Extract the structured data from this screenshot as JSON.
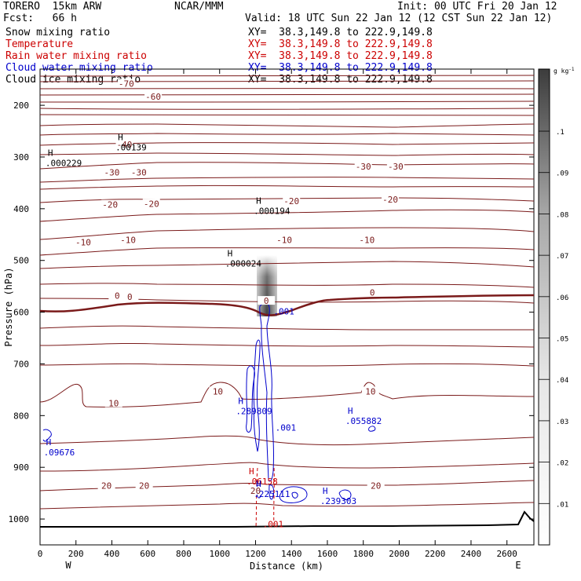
{
  "header": {
    "model": "TORERO  15km ARW",
    "center": "NCAR/MMM",
    "init": "Init: 00 UTC Fri 20 Jan 12",
    "fcst": "Fcst:   66 h",
    "valid": "Valid: 18 UTC Sun 22 Jan 12 (12 CST Sun 22 Jan 12)"
  },
  "fields": [
    {
      "name": "Snow mixing ratio",
      "xy": "XY=  38.3,149.8 to 222.9,149.8",
      "color": "#000000"
    },
    {
      "name": "Temperature",
      "xy": "XY=  38.3,149.8 to 222.9,149.8",
      "color": "#cc0000"
    },
    {
      "name": "Rain water mixing ratio",
      "xy": "XY=  38.3,149.8 to 222.9,149.8",
      "color": "#cc0000"
    },
    {
      "name": "Cloud water mixing ratio",
      "xy": "XY=  38.3,149.8 to 222.9,149.8",
      "color": "#0000cc"
    },
    {
      "name": "Cloud ice mixing ratio",
      "xy": "XY=  38.3,149.8 to 222.9,149.8",
      "color": "#000000"
    }
  ],
  "colors": {
    "temperature": "#7a1a1a",
    "cloud_water": "#0000cc",
    "rain": "#cc0000",
    "snow_shade": "#555555",
    "ground": "#000000"
  },
  "chart_data": {
    "type": "contour",
    "xlabel": "Distance (km)",
    "ylabel": "Pressure (hPa)",
    "xlim": [
      0,
      2750
    ],
    "ylim": [
      1050,
      130
    ],
    "x_ticks": [
      0,
      200,
      400,
      600,
      800,
      1000,
      1200,
      1400,
      1600,
      1800,
      2000,
      2200,
      2400,
      2600
    ],
    "y_ticks": [
      200,
      300,
      400,
      500,
      600,
      700,
      800,
      900,
      1000
    ],
    "x_end_labels": {
      "left": "W",
      "right": "E"
    },
    "colorbar": {
      "unit_label": "g kg",
      "unit_exp": "-1",
      "ticks": [
        ".01",
        ".02",
        ".03",
        ".04",
        ".05",
        ".06",
        ".07",
        ".08",
        ".09",
        ".1"
      ],
      "max_value": 0.115
    },
    "temperature_contour_labels": [
      {
        "x": 480,
        "p": 158,
        "label": "-70"
      },
      {
        "x": 630,
        "p": 183,
        "label": "-60"
      },
      {
        "x": 470,
        "p": 276,
        "label": "-40"
      },
      {
        "x": 400,
        "p": 330,
        "label": "-30"
      },
      {
        "x": 550,
        "p": 330,
        "label": "-30"
      },
      {
        "x": 1800,
        "p": 318,
        "label": "-30"
      },
      {
        "x": 1980,
        "p": 318,
        "label": "-30"
      },
      {
        "x": 390,
        "p": 392,
        "label": "-20"
      },
      {
        "x": 620,
        "p": 390,
        "label": "-20"
      },
      {
        "x": 1400,
        "p": 385,
        "label": "-20"
      },
      {
        "x": 1950,
        "p": 382,
        "label": "-20"
      },
      {
        "x": 240,
        "p": 465,
        "label": "-10"
      },
      {
        "x": 490,
        "p": 460,
        "label": "-10"
      },
      {
        "x": 1360,
        "p": 460,
        "label": "-10"
      },
      {
        "x": 1820,
        "p": 460,
        "label": "-10"
      },
      {
        "x": 430,
        "p": 568,
        "label": "0"
      },
      {
        "x": 500,
        "p": 570,
        "label": "0"
      },
      {
        "x": 1260,
        "p": 578,
        "label": "0"
      },
      {
        "x": 1850,
        "p": 562,
        "label": "0"
      },
      {
        "x": 410,
        "p": 776,
        "label": "10"
      },
      {
        "x": 990,
        "p": 753,
        "label": "10"
      },
      {
        "x": 1840,
        "p": 753,
        "label": "10"
      },
      {
        "x": 370,
        "p": 935,
        "label": "20"
      },
      {
        "x": 580,
        "p": 935,
        "label": "20"
      },
      {
        "x": 1200,
        "p": 945,
        "label": "20"
      },
      {
        "x": 1870,
        "p": 935,
        "label": "20"
      }
    ],
    "max_labels": [
      {
        "x": 420,
        "p": 272,
        "label": ".00139",
        "color": "#000000"
      },
      {
        "x": 30,
        "p": 302,
        "label": ".000229",
        "color": "#000000"
      },
      {
        "x": 1190,
        "p": 395,
        "label": ".000194",
        "color": "#000000"
      },
      {
        "x": 1030,
        "p": 497,
        "label": ".000024",
        "color": "#000000"
      },
      {
        "x": 1090,
        "p": 782,
        "label": ".289809",
        "color": "#0000cc"
      },
      {
        "x": 1700,
        "p": 801,
        "label": ".055882",
        "color": "#0000cc"
      },
      {
        "x": 20,
        "p": 862,
        "label": ".09676",
        "color": "#0000cc"
      },
      {
        "x": 1150,
        "p": 918,
        "label": ".06158",
        "color": "#cc0000"
      },
      {
        "x": 1190,
        "p": 942,
        "label": ".225111",
        "color": "#0000cc"
      },
      {
        "x": 1560,
        "p": 956,
        "label": ".239303",
        "color": "#0000cc"
      }
    ],
    "min_labels": [
      {
        "x": 1240,
        "p": 1010,
        "label": ".001",
        "color": "#cc0000"
      },
      {
        "x": 1300,
        "p": 598,
        "label": ".001",
        "color": "#0000cc"
      },
      {
        "x": 1310,
        "p": 823,
        "label": ".001",
        "color": "#0000cc"
      }
    ]
  }
}
